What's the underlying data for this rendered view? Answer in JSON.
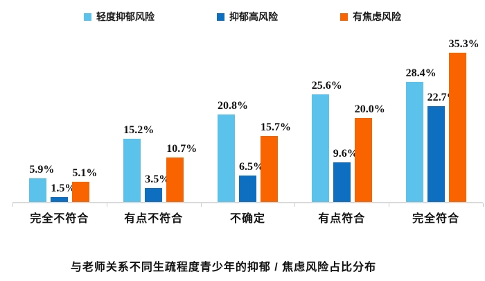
{
  "legend": [
    {
      "label": "轻度抑郁风险",
      "color": "#5BC3EB"
    },
    {
      "label": "抑郁高风险",
      "color": "#0E6FC1"
    },
    {
      "label": "有焦虑风险",
      "color": "#FA6400"
    }
  ],
  "chart_data": {
    "type": "bar",
    "title": "与老师关系不同生疏程度青少年的抑郁 / 焦虑风险占比分布",
    "categories": [
      "完全不符合",
      "有点不符合",
      "不确定",
      "有点符合",
      "完全符合"
    ],
    "series": [
      {
        "name": "轻度抑郁风险",
        "color": "#5BC3EB",
        "values": [
          5.9,
          15.2,
          20.8,
          25.6,
          28.4
        ]
      },
      {
        "name": "抑郁高风险",
        "color": "#0E6FC1",
        "values": [
          1.5,
          3.5,
          6.5,
          9.6,
          22.7
        ]
      },
      {
        "name": "有焦虑风险",
        "color": "#FA6400",
        "values": [
          5.1,
          10.7,
          15.7,
          20.0,
          35.3
        ]
      }
    ],
    "value_suffix": "%",
    "ylim": [
      0,
      40
    ],
    "grid": false,
    "legend_position": "top",
    "xlabel": "",
    "ylabel": "",
    "axis_color": "#d9d9d9"
  }
}
